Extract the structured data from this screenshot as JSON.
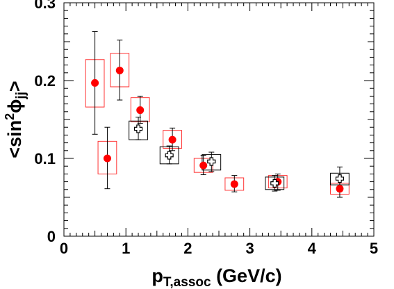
{
  "chart_data": {
    "type": "scatter",
    "title": "",
    "xlabel": "p",
    "xlabel_sub": "T,assoc",
    "xlabel_units": " (GeV/c)",
    "ylabel_prefix": "<sin",
    "ylabel_sup": "2",
    "ylabel_phi": "ϕ",
    "ylabel_sub": "jj",
    "ylabel_suffix": ">",
    "xlim": [
      0,
      5
    ],
    "ylim": [
      0,
      0.3
    ],
    "x_ticks": [
      "0",
      "1",
      "2",
      "3",
      "4",
      "5"
    ],
    "x_tick_values": [
      0,
      1,
      2,
      3,
      4,
      5
    ],
    "y_ticks": [
      "0",
      "0.1",
      "0.2",
      "0.3"
    ],
    "y_tick_values": [
      0,
      0.1,
      0.2,
      0.3
    ],
    "grid": false,
    "legend": "none",
    "series": [
      {
        "marker": "filled-circle",
        "color": "#ff0000",
        "box_color": "#ff3333",
        "points": [
          {
            "x": 0.5,
            "y": 0.197,
            "err_lo": 0.131,
            "err_hi": 0.263,
            "sys_lo": 0.166,
            "sys_hi": 0.227,
            "sys_halfwidth": 0.15
          },
          {
            "x": 0.7,
            "y": 0.1,
            "err_lo": 0.061,
            "err_hi": 0.14,
            "sys_lo": 0.08,
            "sys_hi": 0.122,
            "sys_halfwidth": 0.15
          },
          {
            "x": 0.9,
            "y": 0.213,
            "err_lo": 0.175,
            "err_hi": 0.252,
            "sys_lo": 0.192,
            "sys_hi": 0.235,
            "sys_halfwidth": 0.15
          },
          {
            "x": 1.23,
            "y": 0.162,
            "err_lo": 0.145,
            "err_hi": 0.18,
            "sys_lo": 0.147,
            "sys_hi": 0.178,
            "sys_halfwidth": 0.15
          },
          {
            "x": 1.75,
            "y": 0.124,
            "err_lo": 0.11,
            "err_hi": 0.139,
            "sys_lo": 0.113,
            "sys_hi": 0.136,
            "sys_halfwidth": 0.15
          },
          {
            "x": 2.25,
            "y": 0.091,
            "err_lo": 0.079,
            "err_hi": 0.104,
            "sys_lo": 0.082,
            "sys_hi": 0.1,
            "sys_halfwidth": 0.15
          },
          {
            "x": 2.75,
            "y": 0.067,
            "err_lo": 0.057,
            "err_hi": 0.078,
            "sys_lo": 0.059,
            "sys_hi": 0.075,
            "sys_halfwidth": 0.15
          },
          {
            "x": 3.45,
            "y": 0.07,
            "err_lo": 0.059,
            "err_hi": 0.08,
            "sys_lo": 0.062,
            "sys_hi": 0.078,
            "sys_halfwidth": 0.15
          },
          {
            "x": 4.45,
            "y": 0.061,
            "err_lo": 0.05,
            "err_hi": 0.073,
            "sys_lo": 0.054,
            "sys_hi": 0.068,
            "sys_halfwidth": 0.15
          }
        ]
      },
      {
        "marker": "open-cross",
        "color": "#000000",
        "box_color": "#000000",
        "points": [
          {
            "x": 1.2,
            "y": 0.138,
            "err_lo": 0.124,
            "err_hi": 0.153,
            "sys_lo": 0.124,
            "sys_hi": 0.148,
            "sys_halfwidth": 0.15
          },
          {
            "x": 1.7,
            "y": 0.104,
            "err_lo": 0.093,
            "err_hi": 0.116,
            "sys_lo": 0.093,
            "sys_hi": 0.115,
            "sys_halfwidth": 0.15
          },
          {
            "x": 2.38,
            "y": 0.096,
            "err_lo": 0.083,
            "err_hi": 0.108,
            "sys_lo": 0.085,
            "sys_hi": 0.105,
            "sys_halfwidth": 0.15
          },
          {
            "x": 3.4,
            "y": 0.068,
            "err_lo": 0.058,
            "err_hi": 0.078,
            "sys_lo": 0.06,
            "sys_hi": 0.076,
            "sys_halfwidth": 0.15
          },
          {
            "x": 4.45,
            "y": 0.074,
            "err_lo": 0.063,
            "err_hi": 0.089,
            "sys_lo": 0.066,
            "sys_hi": 0.081,
            "sys_halfwidth": 0.15
          }
        ]
      }
    ]
  }
}
